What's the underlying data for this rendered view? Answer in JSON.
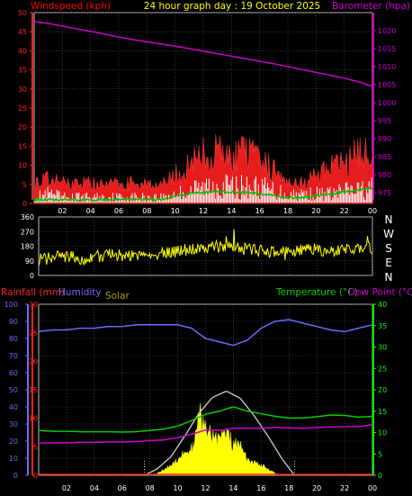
{
  "header": {
    "left_label": "Windspeed (kph)",
    "title": "24 hour graph day : 19 October 2025",
    "right_label": "Barometer (hpa)"
  },
  "colors": {
    "windspeed": "#ff0000",
    "windgust": "#ff2020",
    "barometer": "#cc00cc",
    "direction": "#ffff00",
    "rain": "#ff2020",
    "humidity": "#6b6bff",
    "solar": "#cfcf00",
    "solar_theory": "#c0c0c0",
    "temperature": "#00d000",
    "dewpoint": "#cc00cc",
    "green_wind": "#00c000",
    "axis_green": "#00ff00",
    "axis_rain": "#ff2020",
    "axis_purple": "#cc00cc"
  },
  "xaxis": {
    "ticks": [
      "02",
      "04",
      "06",
      "08",
      "10",
      "12",
      "14",
      "16",
      "18",
      "20",
      "22",
      "00"
    ]
  },
  "chart_data": [
    {
      "type": "line",
      "id": "wind_baro",
      "left_axis": {
        "label": "Windspeed (kph)",
        "ticks": [
          "0",
          "5",
          "10",
          "15",
          "20",
          "25",
          "30",
          "35",
          "40",
          "45",
          "50"
        ],
        "ylim": [
          0,
          50
        ]
      },
      "right_axis": {
        "label": "Barometer (hpa)",
        "ticks": [
          "975",
          "980",
          "985",
          "990",
          "995",
          "1000",
          "1005",
          "1010",
          "1015",
          "1020"
        ],
        "ylim": [
          972,
          1025
        ]
      },
      "series": [
        {
          "key": "barometer",
          "x": [
            0,
            1,
            2,
            3,
            4,
            5,
            6,
            7,
            8,
            9,
            10,
            11,
            12,
            13,
            14,
            15,
            16,
            17,
            18,
            19,
            20,
            21,
            22,
            23,
            24
          ],
          "values": [
            1022.5,
            1022.0,
            1021.3,
            1020.5,
            1019.8,
            1019.0,
            1018.2,
            1017.5,
            1016.9,
            1016.3,
            1015.7,
            1015.0,
            1014.3,
            1013.6,
            1012.9,
            1012.2,
            1011.5,
            1010.8,
            1010.0,
            1009.2,
            1008.4,
            1007.6,
            1006.8,
            1005.8,
            1004.5
          ]
        },
        {
          "key": "windgust",
          "x": [
            0,
            1,
            2,
            3,
            4,
            5,
            6,
            7,
            8,
            9,
            10,
            11,
            12,
            13,
            14,
            15,
            16,
            17,
            18,
            19,
            20,
            21,
            22,
            23,
            24
          ],
          "values": [
            6,
            7,
            6,
            6,
            6,
            5,
            6,
            6,
            6,
            5,
            8,
            11,
            14,
            15,
            13,
            15,
            12,
            10,
            7,
            6,
            8,
            10,
            12,
            14,
            16
          ]
        },
        {
          "key": "windspeed",
          "x": [
            0,
            1,
            2,
            3,
            4,
            5,
            6,
            7,
            8,
            9,
            10,
            11,
            12,
            13,
            14,
            15,
            16,
            17,
            18,
            19,
            20,
            21,
            22,
            23,
            24
          ],
          "values": [
            2,
            3,
            2,
            2,
            2,
            2,
            2,
            2,
            2,
            2,
            3,
            4,
            5,
            6,
            5,
            5,
            5,
            4,
            3,
            3,
            3,
            3,
            4,
            4,
            5
          ]
        },
        {
          "key": "wind_mean",
          "x": [
            0,
            1,
            2,
            3,
            4,
            5,
            6,
            7,
            8,
            9,
            10,
            11,
            12,
            13,
            14,
            15,
            16,
            17,
            18,
            19,
            20,
            21,
            22,
            23,
            24
          ],
          "values": [
            1,
            1,
            1,
            1,
            0.8,
            1,
            1,
            1.2,
            1,
            1,
            2,
            2.5,
            3,
            3,
            3,
            2.8,
            2.5,
            2,
            1.5,
            1.5,
            2,
            2.5,
            3,
            3.5,
            4
          ]
        }
      ]
    },
    {
      "type": "scatter",
      "id": "wind_direction",
      "left_axis": {
        "ticks": [
          "0",
          "90",
          "180",
          "270",
          "360"
        ],
        "ylim": [
          0,
          360
        ]
      },
      "right_axis": {
        "ticks": [
          "N",
          "W",
          "S",
          "E",
          "N"
        ]
      },
      "series": [
        {
          "key": "direction",
          "x": [
            0,
            1,
            2,
            3,
            4,
            5,
            6,
            7,
            8,
            9,
            10,
            11,
            12,
            13,
            14,
            15,
            16,
            17,
            18,
            19,
            20,
            21,
            22,
            23,
            24
          ],
          "values": [
            95,
            110,
            120,
            100,
            115,
            125,
            130,
            125,
            135,
            140,
            150,
            165,
            170,
            180,
            175,
            160,
            150,
            140,
            150,
            155,
            160,
            150,
            155,
            170,
            165
          ]
        }
      ]
    },
    {
      "type": "line",
      "id": "rain_hum_temp",
      "legend": {
        "rain": "Rainfall (mm)",
        "humidity": "Humidity",
        "solar": "Solar",
        "temperature": "Temperature (°C)",
        "dewpoint": "Dew Point (°C)"
      },
      "left_axis_humidity": {
        "ticks": [
          "0",
          "10",
          "20",
          "30",
          "40",
          "50",
          "60",
          "70",
          "80",
          "90",
          "100"
        ],
        "ylim": [
          0,
          100
        ]
      },
      "left_axis_rain": {
        "ticks": [
          "0",
          "5",
          "10",
          "15",
          "20",
          "25",
          "30"
        ],
        "ylim": [
          0,
          30
        ]
      },
      "right_axis_temp": {
        "ticks": [
          "0",
          "5",
          "10",
          "15",
          "20",
          "25",
          "30",
          "35",
          "40"
        ],
        "ylim": [
          0,
          40
        ]
      },
      "series": [
        {
          "key": "humidity",
          "x": [
            0,
            1,
            2,
            3,
            4,
            5,
            6,
            7,
            8,
            9,
            10,
            11,
            12,
            13,
            14,
            15,
            16,
            17,
            18,
            19,
            20,
            21,
            22,
            23,
            24
          ],
          "values": [
            84,
            85,
            85,
            86,
            86,
            87,
            87,
            88,
            88,
            88,
            88,
            86,
            80,
            78,
            76,
            79,
            86,
            90,
            91,
            89,
            87,
            85,
            84,
            86,
            88
          ]
        },
        {
          "key": "temperature",
          "x": [
            0,
            1,
            2,
            3,
            4,
            5,
            6,
            7,
            8,
            9,
            10,
            11,
            12,
            13,
            14,
            15,
            16,
            17,
            18,
            19,
            20,
            21,
            22,
            23,
            24
          ],
          "values": [
            10.5,
            10.3,
            10.3,
            10.2,
            10.2,
            10.2,
            10.1,
            10.2,
            10.5,
            10.8,
            11.5,
            12.8,
            14.3,
            15.0,
            16.0,
            15.0,
            14.4,
            13.8,
            13.4,
            13.4,
            13.7,
            14.1,
            14.0,
            13.6,
            13.8
          ]
        },
        {
          "key": "dewpoint",
          "x": [
            0,
            1,
            2,
            3,
            4,
            5,
            6,
            7,
            8,
            9,
            10,
            11,
            12,
            13,
            14,
            15,
            16,
            17,
            18,
            19,
            20,
            21,
            22,
            23,
            24
          ],
          "values": [
            7.5,
            7.6,
            7.6,
            7.7,
            7.7,
            7.8,
            7.8,
            7.9,
            8.1,
            8.3,
            8.8,
            9.6,
            10.6,
            10.5,
            11.0,
            11.0,
            11.0,
            11.2,
            11.1,
            11.0,
            11.2,
            11.3,
            11.4,
            11.4,
            11.8
          ]
        },
        {
          "key": "solar_theory",
          "x": [
            7.6,
            8.5,
            9.5,
            10.5,
            11.5,
            12.5,
            13.5,
            14.5,
            15.5,
            16.5,
            17.5,
            18.4
          ],
          "values": [
            0,
            6,
            18,
            38,
            60,
            76,
            82,
            75,
            58,
            38,
            16,
            0
          ]
        },
        {
          "key": "solar",
          "x": [
            8.5,
            9,
            9.5,
            10,
            10.5,
            11,
            11.3,
            11.6,
            12,
            12.5,
            13,
            13.5,
            14,
            14.5,
            15,
            15.5,
            16,
            16.5,
            17
          ],
          "values": [
            2,
            5,
            10,
            16,
            22,
            26,
            36,
            60,
            42,
            40,
            35,
            40,
            30,
            28,
            15,
            12,
            10,
            6,
            2
          ]
        },
        {
          "key": "rain",
          "x": [
            0,
            24
          ],
          "values": [
            0,
            0
          ]
        }
      ]
    }
  ]
}
